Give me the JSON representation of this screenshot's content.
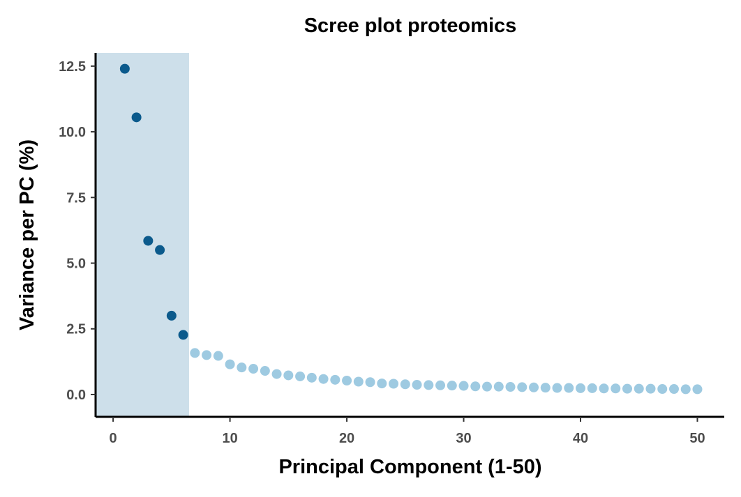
{
  "chart_data": {
    "type": "scatter",
    "title": "Scree plot proteomics",
    "xlabel": "Principal Component (1-50)",
    "ylabel": "Variance per PC (%)",
    "xlim": [
      -1.5,
      52.3
    ],
    "ylim": [
      -0.85,
      13.0
    ],
    "xticks": [
      0,
      10,
      20,
      30,
      40,
      50
    ],
    "yticks": [
      0.0,
      2.5,
      5.0,
      7.5,
      10.0,
      12.5
    ],
    "xtick_labels": [
      "0",
      "10",
      "20",
      "30",
      "40",
      "50"
    ],
    "ytick_labels": [
      "0.0",
      "2.5",
      "5.0",
      "7.5",
      "10.0",
      "12.5"
    ],
    "grid": false,
    "legend": "none",
    "highlight_region": {
      "x_start": -1.5,
      "x_end": 6.5,
      "color": "#cddfea"
    },
    "colors": {
      "selected": "#0b5a8c",
      "unselected": "#9ecae1"
    },
    "series": [
      {
        "x": [
          1,
          2,
          3,
          4,
          5,
          6
        ],
        "y": [
          12.4,
          10.55,
          5.85,
          5.5,
          3.0,
          2.27
        ],
        "color": "#0b5a8c"
      },
      {
        "x": [
          7,
          8,
          9,
          10,
          11,
          12,
          13,
          14,
          15,
          16,
          17,
          18,
          19,
          20,
          21,
          22,
          23,
          24,
          25,
          26,
          27,
          28,
          29,
          30,
          31,
          32,
          33,
          34,
          35,
          36,
          37,
          38,
          39,
          40,
          41,
          42,
          43,
          44,
          45,
          46,
          47,
          48,
          49,
          50
        ],
        "y": [
          1.58,
          1.5,
          1.47,
          1.15,
          1.03,
          0.98,
          0.9,
          0.78,
          0.73,
          0.69,
          0.64,
          0.59,
          0.56,
          0.53,
          0.49,
          0.47,
          0.42,
          0.41,
          0.39,
          0.37,
          0.36,
          0.35,
          0.34,
          0.33,
          0.31,
          0.3,
          0.3,
          0.29,
          0.28,
          0.27,
          0.26,
          0.25,
          0.25,
          0.24,
          0.24,
          0.23,
          0.23,
          0.22,
          0.22,
          0.22,
          0.21,
          0.21,
          0.2,
          0.2
        ],
        "color": "#9ecae1"
      }
    ]
  }
}
